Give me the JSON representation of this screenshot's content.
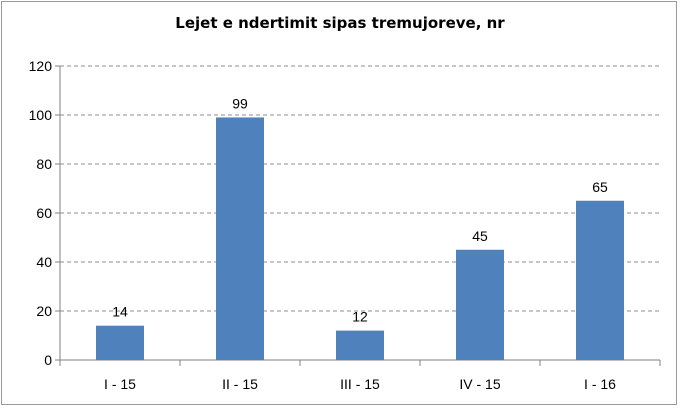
{
  "chart_data": {
    "type": "bar",
    "title": "Lejet e ndertimit sipas tremujoreve, nr",
    "categories": [
      "I - 15",
      "II - 15",
      "III - 15",
      "IV - 15",
      "I - 16"
    ],
    "values": [
      14,
      99,
      12,
      45,
      65
    ],
    "data_labels": [
      "14",
      "99",
      "12",
      "45",
      "65"
    ],
    "yticks": [
      "0",
      "20",
      "40",
      "60",
      "80",
      "100",
      "120"
    ],
    "ylim": [
      0,
      120
    ],
    "grid": "dashed horizontal",
    "legend": "none",
    "bar_color": "#4F81BD"
  }
}
